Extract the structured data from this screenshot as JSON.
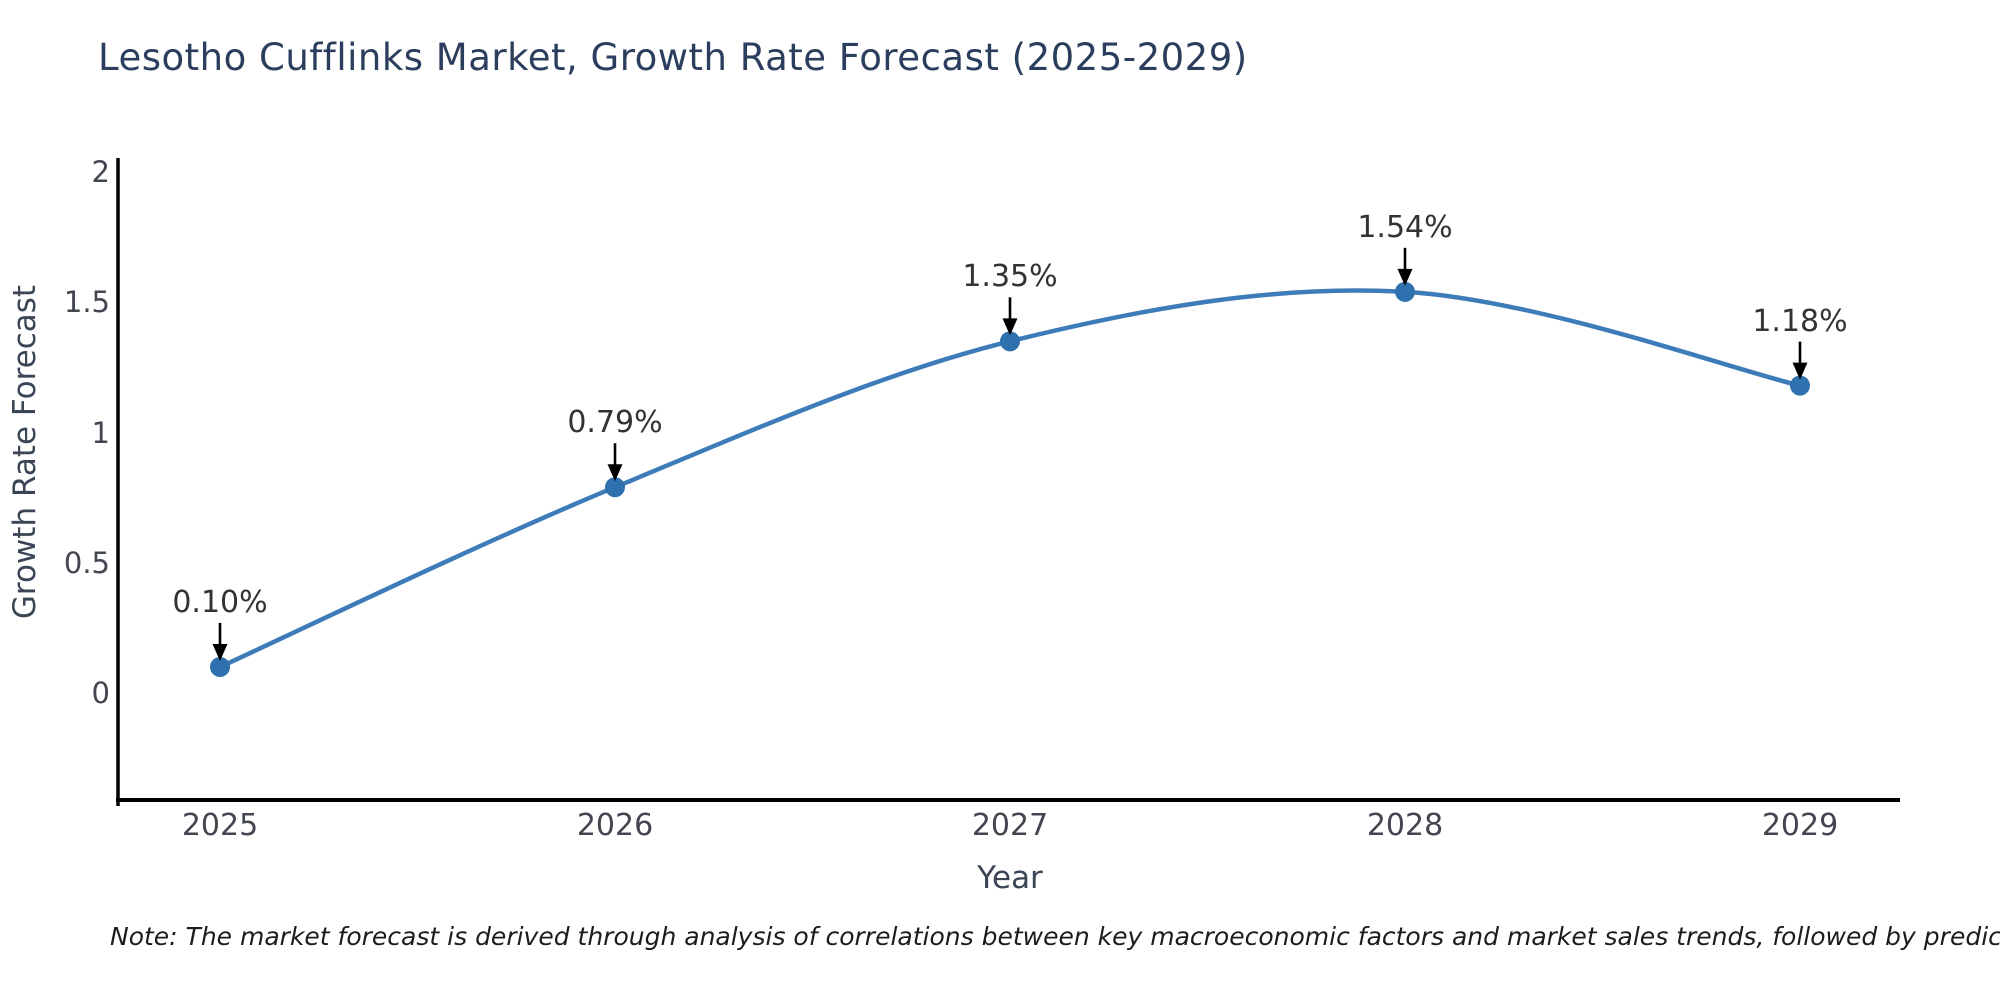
{
  "note": "Note: The market forecast is derived through analysis of correlations between key macroeconomic factors and market sales trends, followed by predictive modeling to project future sales",
  "chart_data": {
    "type": "line",
    "title": "Lesotho Cufflinks Market, Growth Rate Forecast (2025-2029)",
    "xlabel": "Year",
    "ylabel": "Growth Rate Forecast",
    "x": [
      2025,
      2026,
      2027,
      2028,
      2029
    ],
    "y": [
      0.1,
      0.79,
      1.35,
      1.54,
      1.18
    ],
    "point_labels": [
      "0.10%",
      "0.79%",
      "1.35%",
      "1.54%",
      "1.18%"
    ],
    "xtick_labels": [
      "2025",
      "2026",
      "2027",
      "2028",
      "2029"
    ],
    "ytick_values": [
      2,
      1.5,
      1,
      0.5,
      0
    ],
    "ylim": [
      -0.41,
      2.05
    ],
    "grid": false,
    "legend": "none",
    "curve": "spline",
    "annotations": "value labels with down arrows above each point",
    "colors": {
      "line": "#3e7cb9",
      "marker": "#2f70ae",
      "annotation_text": "#333333",
      "arrow": "#000000",
      "axis": "#000000",
      "title": "#2c3e5d",
      "tick_text": "#42464f"
    }
  }
}
